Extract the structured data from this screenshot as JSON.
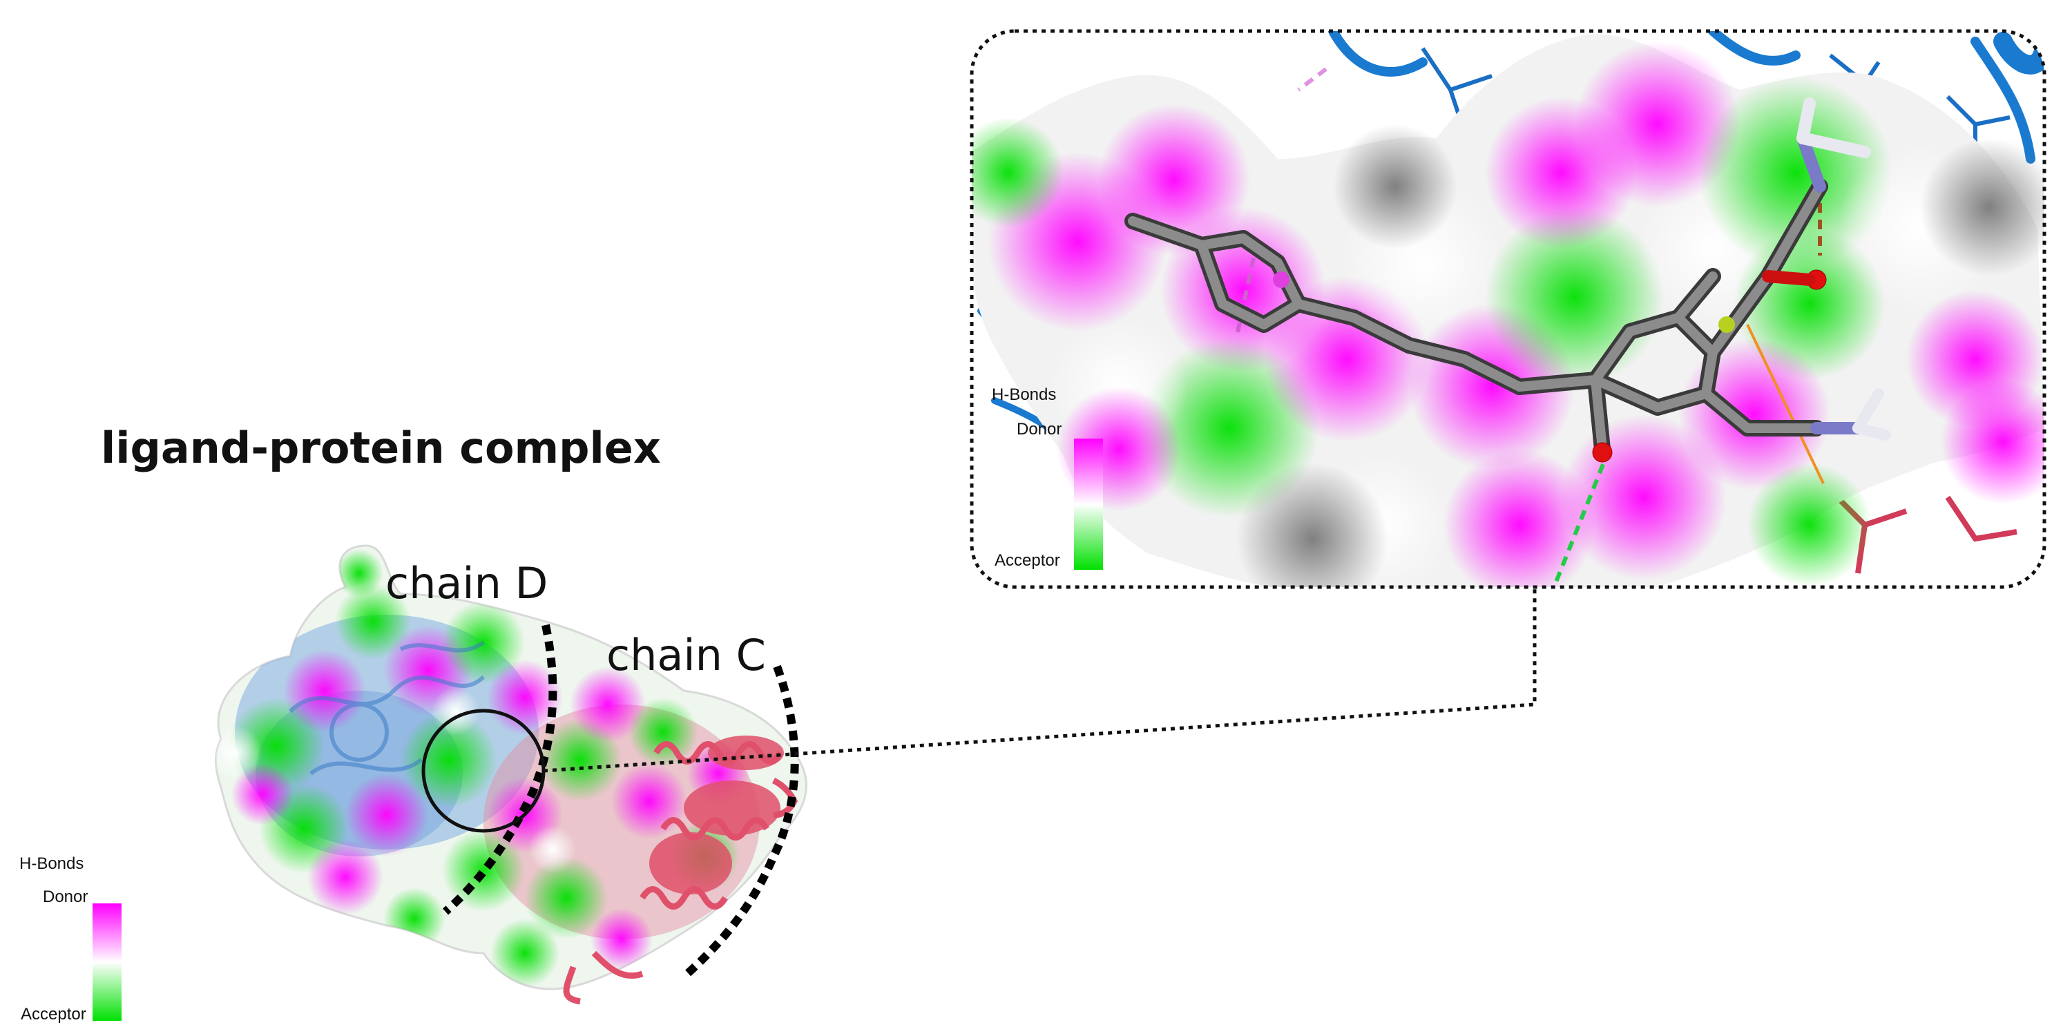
{
  "title": "ligand-protein complex",
  "chain_labels": {
    "chain_d": "chain D",
    "chain_c": "chain C"
  },
  "legend_main": {
    "heading": "H-Bonds",
    "top_label": "Donor",
    "bottom_label": "Acceptor"
  },
  "legend_inset": {
    "heading": "H-Bonds",
    "top_label": "Donor",
    "bottom_label": "Acceptor"
  },
  "colors": {
    "donor": "#ff00ff",
    "neutral": "#ffffff",
    "acceptor": "#00e000",
    "chain_c_ribbon": "#e0506a",
    "chain_d_ribbon": "#3a8fd8",
    "ligand": "#707070",
    "surface_grey": "#8a8a8a"
  },
  "icons": [
    "protein-surface",
    "ligand-stick-model",
    "zoom-callout-circle"
  ]
}
